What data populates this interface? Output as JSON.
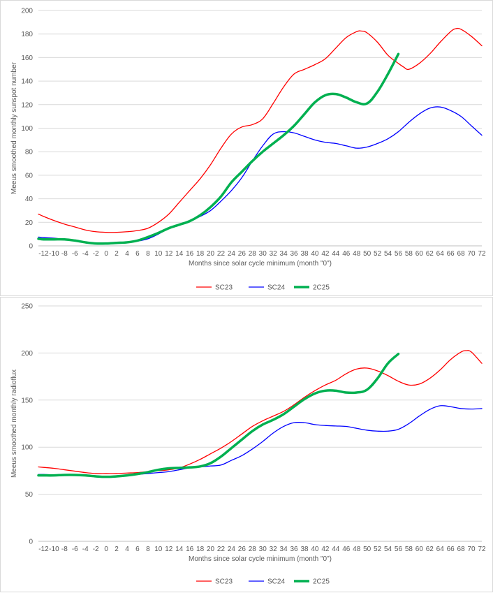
{
  "chart_data": [
    {
      "type": "line",
      "title": "",
      "xlabel": "Months since solar cycle minimum (month \"0\")",
      "ylabel": "Meeus smoothed monthly sunspot number",
      "xlim": [
        -13,
        72
      ],
      "ylim": [
        0,
        200
      ],
      "yticks": [
        0,
        20,
        40,
        60,
        80,
        100,
        120,
        140,
        160,
        180,
        200
      ],
      "xtick_labels": [
        "-12",
        "-10",
        "-8",
        "-6",
        "-4",
        "-2",
        "0",
        "2",
        "4",
        "6",
        "8",
        "10",
        "12",
        "14",
        "16",
        "18",
        "20",
        "22",
        "24",
        "26",
        "28",
        "30",
        "32",
        "34",
        "36",
        "38",
        "40",
        "42",
        "44",
        "46",
        "48",
        "50",
        "52",
        "54",
        "56",
        "58",
        "60",
        "62",
        "64",
        "66",
        "68",
        "70",
        "72"
      ],
      "grid": "horizontal",
      "legend": "bottom",
      "series": [
        {
          "name": "SC23",
          "color": "#ff0000",
          "width": 1.3,
          "x": [
            -13,
            -12,
            -10,
            -8,
            -6,
            -4,
            -2,
            0,
            2,
            4,
            6,
            8,
            10,
            12,
            14,
            16,
            18,
            20,
            22,
            24,
            26,
            28,
            30,
            32,
            34,
            36,
            38,
            40,
            42,
            44,
            46,
            48,
            49,
            50,
            52,
            54,
            56,
            57,
            58,
            60,
            62,
            64,
            66,
            67,
            68,
            70,
            72
          ],
          "y": [
            27,
            25,
            21.5,
            18.5,
            16,
            13.5,
            12,
            11.5,
            11.5,
            12,
            13,
            15,
            20,
            27,
            37,
            47,
            57,
            69,
            83,
            95,
            101,
            103,
            108,
            121,
            135,
            146,
            150,
            154,
            159,
            168,
            177,
            182,
            182.5,
            181,
            173,
            162,
            155,
            152,
            150,
            155,
            163,
            173,
            182,
            184.5,
            184,
            178,
            170
          ]
        },
        {
          "name": "SC24",
          "color": "#0000ff",
          "width": 1.3,
          "x": [
            -13,
            -12,
            -10,
            -8,
            -6,
            -4,
            -2,
            0,
            2,
            4,
            6,
            8,
            10,
            12,
            14,
            16,
            18,
            20,
            22,
            24,
            26,
            28,
            30,
            32,
            34,
            36,
            38,
            40,
            42,
            44,
            46,
            48,
            50,
            52,
            54,
            56,
            58,
            60,
            62,
            64,
            66,
            68,
            70,
            72
          ],
          "y": [
            7.5,
            7,
            6.5,
            5.5,
            4.5,
            3,
            2.5,
            2.5,
            2.5,
            3,
            4,
            6,
            10,
            15,
            18,
            21,
            25,
            30,
            38,
            47,
            58,
            72,
            85,
            95,
            97,
            96,
            93,
            90,
            88,
            87,
            85,
            83,
            84,
            87,
            91,
            97,
            105,
            112,
            117,
            118,
            115,
            110,
            102,
            94
          ]
        },
        {
          "name": "2C25",
          "color": "#00b050",
          "width": 3.5,
          "x": [
            -13,
            -12,
            -10,
            -8,
            -6,
            -4,
            -2,
            0,
            2,
            4,
            6,
            8,
            10,
            12,
            14,
            16,
            18,
            20,
            22,
            24,
            26,
            28,
            30,
            32,
            34,
            36,
            38,
            40,
            42,
            44,
            46,
            48,
            50,
            52,
            54,
            56
          ],
          "y": [
            6,
            5.5,
            5.5,
            5.5,
            4.5,
            3,
            2,
            2,
            2.5,
            3,
            4.5,
            7.5,
            11,
            15,
            18,
            21,
            26,
            33,
            42,
            54,
            63,
            72,
            80,
            87,
            94,
            102,
            112,
            122,
            128,
            129,
            126,
            122,
            121,
            131,
            146,
            163
          ]
        }
      ]
    },
    {
      "type": "line",
      "title": "",
      "xlabel": "Months since solar cycle minimum (month \"0\")",
      "ylabel": "Meeus smoothed monthly radioflux",
      "xlim": [
        -13,
        72
      ],
      "ylim": [
        0,
        250
      ],
      "yticks": [
        0,
        50,
        100,
        150,
        200,
        250
      ],
      "xtick_labels": [
        "-12",
        "-10",
        "-8",
        "-6",
        "-4",
        "-2",
        "0",
        "2",
        "4",
        "6",
        "8",
        "10",
        "12",
        "14",
        "16",
        "18",
        "20",
        "22",
        "24",
        "26",
        "28",
        "30",
        "32",
        "34",
        "36",
        "38",
        "40",
        "42",
        "44",
        "46",
        "48",
        "50",
        "52",
        "54",
        "56",
        "58",
        "60",
        "62",
        "64",
        "66",
        "68",
        "70",
        "72"
      ],
      "grid": "horizontal",
      "legend": "bottom",
      "series": [
        {
          "name": "SC23",
          "color": "#ff0000",
          "width": 1.3,
          "x": [
            -13,
            -12,
            -10,
            -8,
            -6,
            -4,
            -2,
            0,
            2,
            4,
            6,
            8,
            10,
            12,
            14,
            16,
            18,
            20,
            22,
            24,
            26,
            28,
            30,
            32,
            34,
            36,
            38,
            40,
            42,
            44,
            46,
            48,
            50,
            52,
            54,
            56,
            58,
            60,
            62,
            64,
            66,
            68,
            69,
            70,
            72
          ],
          "y": [
            79,
            78.5,
            77.5,
            76,
            74.5,
            73,
            72,
            72,
            72,
            72.5,
            73,
            74,
            75,
            76,
            78,
            82,
            87,
            93,
            99,
            106,
            114,
            122,
            128,
            133,
            138,
            145,
            153,
            160,
            166,
            171,
            178,
            183,
            184,
            181,
            176,
            170,
            166,
            167,
            173,
            182,
            193,
            201,
            202.5,
            201,
            189
          ]
        },
        {
          "name": "SC24",
          "color": "#0000ff",
          "width": 1.3,
          "x": [
            -13,
            -12,
            -10,
            -8,
            -6,
            -4,
            -2,
            0,
            2,
            4,
            6,
            8,
            10,
            12,
            14,
            16,
            18,
            20,
            22,
            24,
            26,
            28,
            30,
            32,
            34,
            36,
            38,
            40,
            42,
            44,
            46,
            48,
            50,
            52,
            54,
            56,
            58,
            60,
            62,
            64,
            66,
            68,
            70,
            72
          ],
          "y": [
            71,
            71,
            70.5,
            70.5,
            70,
            70,
            69.5,
            69,
            69.5,
            70,
            71,
            72,
            73,
            74,
            76,
            78,
            79,
            80,
            81,
            86,
            91,
            98,
            106,
            115,
            122,
            126,
            126,
            124,
            123,
            122.5,
            122,
            120,
            118,
            117,
            117,
            119,
            125,
            133,
            140,
            144,
            143,
            141,
            140.5,
            141
          ]
        },
        {
          "name": "2C25",
          "color": "#00b050",
          "width": 3.5,
          "x": [
            -13,
            -12,
            -10,
            -8,
            -6,
            -4,
            -2,
            0,
            2,
            4,
            6,
            8,
            10,
            12,
            14,
            16,
            18,
            20,
            22,
            24,
            26,
            28,
            30,
            32,
            34,
            36,
            38,
            40,
            42,
            44,
            46,
            48,
            50,
            52,
            54,
            56
          ],
          "y": [
            70,
            70,
            70,
            70.5,
            70.5,
            70,
            69,
            68.5,
            69,
            70,
            71.5,
            73.5,
            76,
            77.5,
            78,
            78.5,
            79.5,
            83,
            90,
            99,
            108,
            117,
            124,
            129,
            135,
            143,
            151,
            157,
            160,
            160,
            158,
            158,
            161,
            173,
            189,
            199
          ]
        }
      ]
    }
  ]
}
